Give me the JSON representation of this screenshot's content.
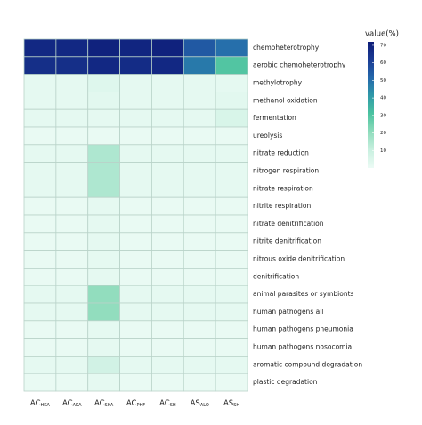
{
  "chart_data": {
    "type": "heatmap",
    "rows": [
      "chemoheterotrophy",
      "aerobic chemoheterotrophy",
      "methylotrophy",
      "methanol oxidation",
      "fermentation",
      "ureolysis",
      "nitrate reduction",
      "nitrogen respiration",
      "nitrate respiration",
      "nitrite respiration",
      "nitrate denitrification",
      "nitrite denitrification",
      "nitrous oxide denitrification",
      "denitrification",
      "animal parasites or symbionts",
      "human pathogens all",
      "human pathogens pneumonia",
      "human pathogens nosocomia",
      "aromatic compound degradation",
      "plastic degradation"
    ],
    "columns": [
      {
        "main": "AC",
        "sub": "HKA"
      },
      {
        "main": "AC",
        "sub": "AKA"
      },
      {
        "main": "AC",
        "sub": "SKA"
      },
      {
        "main": "AC",
        "sub": "PHF"
      },
      {
        "main": "AC",
        "sub": "SH"
      },
      {
        "main": "AS",
        "sub": "ALO"
      },
      {
        "main": "AS",
        "sub": "SH"
      }
    ],
    "values": [
      [
        68,
        68,
        70,
        69,
        70,
        55,
        50
      ],
      [
        66,
        66,
        68,
        67,
        68,
        48,
        30
      ],
      [
        2,
        2,
        4,
        2,
        2,
        2,
        2
      ],
      [
        2,
        2,
        3,
        2,
        2,
        2,
        3
      ],
      [
        2,
        2,
        2,
        2,
        2,
        2,
        6
      ],
      [
        1,
        1,
        1,
        1,
        1,
        1,
        1
      ],
      [
        2,
        2,
        15,
        2,
        2,
        2,
        2
      ],
      [
        2,
        2,
        15,
        2,
        2,
        2,
        2
      ],
      [
        2,
        2,
        15,
        2,
        2,
        2,
        2
      ],
      [
        1,
        1,
        2,
        1,
        1,
        1,
        1
      ],
      [
        1,
        1,
        2,
        1,
        1,
        1,
        1
      ],
      [
        1,
        1,
        2,
        1,
        1,
        1,
        1
      ],
      [
        1,
        1,
        2,
        1,
        1,
        1,
        1
      ],
      [
        1,
        1,
        2,
        1,
        1,
        1,
        1
      ],
      [
        2,
        2,
        20,
        2,
        2,
        2,
        2
      ],
      [
        2,
        2,
        20,
        2,
        2,
        2,
        2
      ],
      [
        1,
        1,
        2,
        1,
        1,
        1,
        1
      ],
      [
        1,
        1,
        2,
        1,
        1,
        1,
        1
      ],
      [
        2,
        2,
        8,
        2,
        2,
        2,
        2
      ],
      [
        1,
        1,
        2,
        1,
        1,
        1,
        1
      ]
    ],
    "colorbar_title": "value(%)",
    "clim": [
      0,
      72
    ],
    "cticks": [
      10,
      20,
      30,
      40,
      50,
      60,
      70
    ],
    "colorscale": [
      "#ecfbf5",
      "#c9f0e0",
      "#8fdcbc",
      "#4cc3a0",
      "#2f9aa8",
      "#2468ab",
      "#1b3c94",
      "#0d1c78"
    ]
  }
}
